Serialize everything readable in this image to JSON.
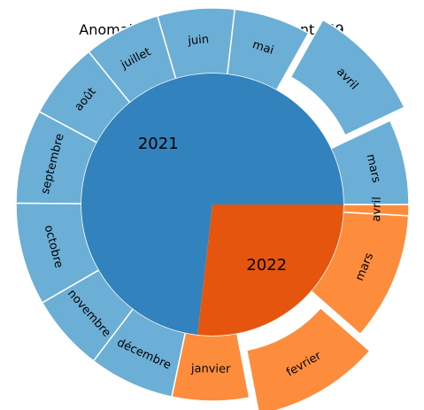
{
  "chart_data": {
    "type": "pie",
    "subtype": "sunburst",
    "title": "Anomalies dans l'arrondissement n°9",
    "colors": {
      "inner_2021": "#3182bd",
      "outer_2021": "#6baed6",
      "inner_2022": "#e6550d",
      "outer_2022": "#fd8d3c",
      "separator": "#ffffff"
    },
    "inner": [
      {
        "label": "2021",
        "value": 11,
        "series": "2021"
      },
      {
        "label": "2022",
        "value": 4.03,
        "series": "2022"
      }
    ],
    "outer": [
      {
        "label": "mars",
        "value": 1.0,
        "series": "2021",
        "explode": 0
      },
      {
        "label": "avril",
        "value": 1.4,
        "series": "2021",
        "explode": 1
      },
      {
        "label": "mai",
        "value": 0.9,
        "series": "2021",
        "explode": 0
      },
      {
        "label": "juin",
        "value": 0.9,
        "series": "2021",
        "explode": 0
      },
      {
        "label": "juillet",
        "value": 0.9,
        "series": "2021",
        "explode": 0
      },
      {
        "label": "août",
        "value": 0.9,
        "series": "2021",
        "explode": 0
      },
      {
        "label": "septembre",
        "value": 1.1,
        "series": "2021",
        "explode": 0
      },
      {
        "label": "octobre",
        "value": 1.2,
        "series": "2021",
        "explode": 0
      },
      {
        "label": "novembre",
        "value": 0.9,
        "series": "2021",
        "explode": 0
      },
      {
        "label": "décembre",
        "value": 1.0,
        "series": "2021",
        "explode": 0
      },
      {
        "label": "janvier",
        "value": 0.9,
        "series": "2022",
        "explode": 0
      },
      {
        "label": "fevrier",
        "value": 1.5,
        "series": "2022",
        "explode": 1
      },
      {
        "label": "mars",
        "value": 1.5,
        "series": "2022",
        "explode": 0
      },
      {
        "label": "avril",
        "value": 0.13,
        "series": "2022",
        "explode": 0
      }
    ]
  }
}
